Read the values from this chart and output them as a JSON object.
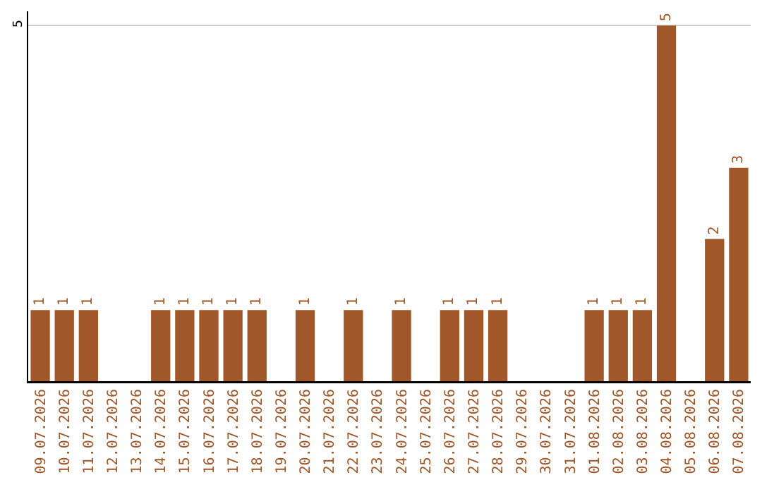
{
  "chart_data": {
    "type": "bar",
    "categories": [
      "09.07.2026",
      "10.07.2026",
      "11.07.2026",
      "12.07.2026",
      "13.07.2026",
      "14.07.2026",
      "15.07.2026",
      "16.07.2026",
      "17.07.2026",
      "18.07.2026",
      "19.07.2026",
      "20.07.2026",
      "21.07.2026",
      "22.07.2026",
      "23.07.2026",
      "24.07.2026",
      "25.07.2026",
      "26.07.2026",
      "27.07.2026",
      "28.07.2026",
      "29.07.2026",
      "30.07.2026",
      "31.07.2026",
      "01.08.2026",
      "02.08.2026",
      "03.08.2026",
      "04.08.2026",
      "05.08.2026",
      "06.08.2026",
      "07.08.2026"
    ],
    "values": [
      1,
      1,
      1,
      0,
      0,
      1,
      1,
      1,
      1,
      1,
      0,
      1,
      0,
      1,
      0,
      1,
      0,
      1,
      1,
      1,
      0,
      0,
      0,
      1,
      1,
      1,
      5,
      0,
      2,
      3
    ],
    "value_labels": [
      "1",
      "1",
      "1",
      null,
      null,
      "1",
      "1",
      "1",
      "1",
      "1",
      null,
      "1",
      null,
      "1",
      null,
      "1",
      null,
      "1",
      "1",
      "1",
      null,
      null,
      null,
      "1",
      "1",
      "1",
      "5",
      null,
      "2",
      "3"
    ],
    "color": "#a0572a",
    "ylim": [
      0,
      5.2
    ],
    "yticks": [
      5
    ],
    "grid": "y"
  }
}
